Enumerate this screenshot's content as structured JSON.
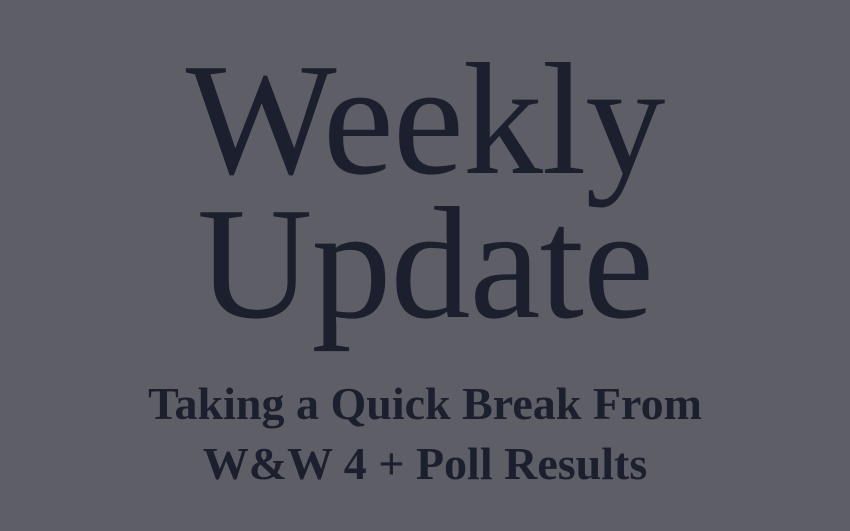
{
  "title": {
    "line1": "Weekly",
    "line2": "Update"
  },
  "subtitle": {
    "line1": "Taking a Quick Break From",
    "line2": "W&W 4 + Poll Results"
  },
  "colors": {
    "background": "#5e5f66",
    "text": "#1c1f2d"
  }
}
